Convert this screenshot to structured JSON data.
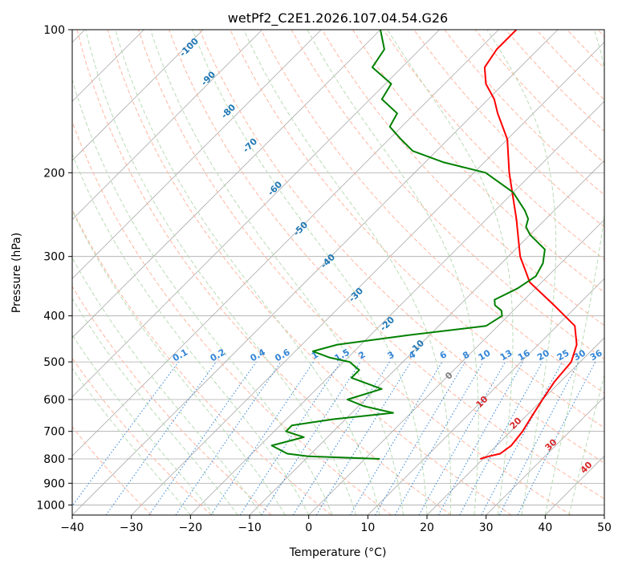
{
  "chart_data": {
    "type": "line",
    "subtype": "skew-T log-P",
    "title": "wetPf2_C2E1.2026.107.04.54.G26",
    "xlabel": "Temperature (°C)",
    "ylabel": "Pressure (hPa)",
    "xlim": [
      -40,
      50
    ],
    "ylim_hpa": [
      1050,
      100
    ],
    "x_ticks": [
      "−40",
      "−30",
      "−20",
      "−10",
      "0",
      "10",
      "20",
      "30",
      "40",
      "50"
    ],
    "y_ticks": [
      "100",
      "200",
      "300",
      "400",
      "500",
      "600",
      "700",
      "800",
      "900",
      "1000"
    ],
    "grid": true,
    "series": [
      {
        "name": "temperature",
        "color": "#ff0000",
        "p": [
          800,
          790,
          780,
          750,
          700,
          650,
          600,
          550,
          500,
          460,
          420,
          380,
          340,
          300,
          250,
          200,
          170,
          150,
          140,
          130,
          120,
          110,
          100
        ],
        "t": [
          19.5,
          20.5,
          22,
          22.5,
          22,
          21,
          20,
          19,
          18.5,
          16.5,
          13,
          6,
          -2,
          -8,
          -15,
          -24,
          -30,
          -36,
          -39,
          -43,
          -46,
          -47,
          -47
        ]
      },
      {
        "name": "dewpoint",
        "color": "#008000",
        "p": [
          800,
          790,
          780,
          750,
          720,
          700,
          680,
          660,
          640,
          620,
          600,
          570,
          540,
          520,
          500,
          490,
          475,
          460,
          440,
          420,
          400,
          390,
          380,
          370,
          350,
          330,
          310,
          290,
          270,
          260,
          250,
          240,
          220,
          200,
          190,
          180,
          170,
          160,
          150,
          140,
          130,
          120,
          110,
          100
        ],
        "t": [
          2.5,
          -10,
          -14,
          -18,
          -14,
          -18,
          -18,
          -12,
          -3,
          -9,
          -13,
          -9,
          -16,
          -16,
          -19,
          -23,
          -27,
          -24,
          -14,
          -2,
          -1,
          -2,
          -4,
          -5,
          -3,
          -2,
          -3,
          -5,
          -10,
          -12,
          -13,
          -15,
          -20,
          -28,
          -37,
          -44,
          -48,
          -52,
          -53,
          -58,
          -59,
          -65,
          -66,
          -70
        ]
      }
    ],
    "dry_adiabat_labels": [
      "-100",
      "-90",
      "-80",
      "-70",
      "-60",
      "-50",
      "-40",
      "-30",
      "-20",
      "-10",
      "0",
      "10",
      "20",
      "30",
      "40"
    ],
    "mixing_ratio_labels": [
      "0.1",
      "0.2",
      "0.4",
      "0.6",
      "1",
      "1.5",
      "2",
      "3",
      "4",
      "6",
      "8",
      "10",
      "13",
      "16",
      "20",
      "25",
      "30",
      "36"
    ],
    "colors": {
      "isotherm": "#aaaaaa",
      "isobar": "#aaaaaa",
      "dry_adiabat": "#ffb6a0",
      "moist_adiabat": "#b9dcb5",
      "mixing_ratio": "#3385d6",
      "cold_label": "#1f77b4",
      "warm_label": "#d62728",
      "zero_label": "#7f7f7f"
    }
  }
}
